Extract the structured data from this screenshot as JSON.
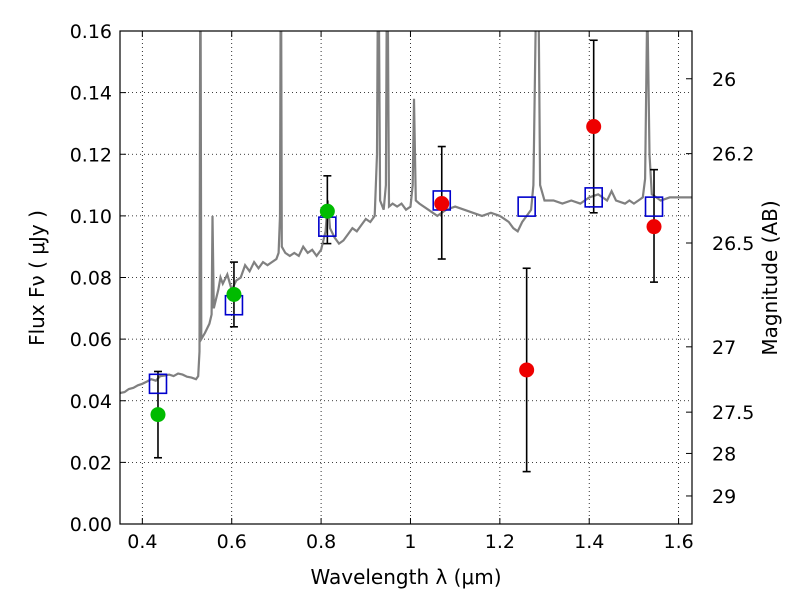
{
  "chart_data": {
    "type": "scatter",
    "xlabel": "Wavelength  λ (μm)",
    "ylabel": "Flux  Fν  ( μJy )",
    "y2label": "Magnitude (AB)",
    "xlim": [
      0.35,
      1.63
    ],
    "ylim": [
      0.0,
      0.16
    ],
    "grid": true,
    "x_ticks": [
      {
        "value": 0.4,
        "label": "0.4"
      },
      {
        "value": 0.6,
        "label": "0.6"
      },
      {
        "value": 0.8,
        "label": "0.8"
      },
      {
        "value": 1.0,
        "label": "1"
      },
      {
        "value": 1.2,
        "label": "1.2"
      },
      {
        "value": 1.4,
        "label": "1.4"
      },
      {
        "value": 1.6,
        "label": "1.6"
      }
    ],
    "y_ticks": [
      {
        "value": 0.0,
        "label": "0.00"
      },
      {
        "value": 0.02,
        "label": "0.02"
      },
      {
        "value": 0.04,
        "label": "0.04"
      },
      {
        "value": 0.06,
        "label": "0.06"
      },
      {
        "value": 0.08,
        "label": "0.08"
      },
      {
        "value": 0.1,
        "label": "0.10"
      },
      {
        "value": 0.12,
        "label": "0.12"
      },
      {
        "value": 0.14,
        "label": "0.14"
      },
      {
        "value": 0.16,
        "label": "0.16"
      }
    ],
    "mag_ticks": [
      {
        "label": "26",
        "flux": 0.1445
      },
      {
        "label": "26.2",
        "flux": 0.1202
      },
      {
        "label": "26.5",
        "flux": 0.0912
      },
      {
        "label": "27",
        "flux": 0.0575
      },
      {
        "label": "27.5",
        "flux": 0.0363
      },
      {
        "label": "28",
        "flux": 0.0229
      },
      {
        "label": "29",
        "flux": 0.0091
      }
    ],
    "model_spectrum": {
      "color": "#808080",
      "points": [
        [
          0.35,
          0.0425
        ],
        [
          0.36,
          0.0428
        ],
        [
          0.37,
          0.0438
        ],
        [
          0.38,
          0.0442
        ],
        [
          0.39,
          0.045
        ],
        [
          0.4,
          0.0455
        ],
        [
          0.41,
          0.0462
        ],
        [
          0.42,
          0.047
        ],
        [
          0.43,
          0.0465
        ],
        [
          0.44,
          0.048
        ],
        [
          0.45,
          0.0482
        ],
        [
          0.46,
          0.0485
        ],
        [
          0.47,
          0.048
        ],
        [
          0.48,
          0.0488
        ],
        [
          0.49,
          0.0485
        ],
        [
          0.5,
          0.0478
        ],
        [
          0.51,
          0.0475
        ],
        [
          0.52,
          0.047
        ],
        [
          0.525,
          0.048
        ],
        [
          0.528,
          0.056
        ],
        [
          0.53,
          0.2
        ],
        [
          0.532,
          0.06
        ],
        [
          0.54,
          0.062
        ],
        [
          0.55,
          0.065
        ],
        [
          0.555,
          0.068
        ],
        [
          0.557,
          0.1
        ],
        [
          0.56,
          0.07
        ],
        [
          0.57,
          0.076
        ],
        [
          0.575,
          0.08
        ],
        [
          0.58,
          0.078
        ],
        [
          0.59,
          0.081
        ],
        [
          0.6,
          0.076
        ],
        [
          0.61,
          0.079
        ],
        [
          0.62,
          0.08
        ],
        [
          0.63,
          0.084
        ],
        [
          0.64,
          0.082
        ],
        [
          0.65,
          0.085
        ],
        [
          0.66,
          0.083
        ],
        [
          0.67,
          0.085
        ],
        [
          0.68,
          0.084
        ],
        [
          0.69,
          0.085
        ],
        [
          0.7,
          0.086
        ],
        [
          0.705,
          0.088
        ],
        [
          0.708,
          0.1
        ],
        [
          0.71,
          0.2
        ],
        [
          0.712,
          0.09
        ],
        [
          0.72,
          0.088
        ],
        [
          0.73,
          0.087
        ],
        [
          0.74,
          0.088
        ],
        [
          0.75,
          0.087
        ],
        [
          0.76,
          0.09
        ],
        [
          0.77,
          0.088
        ],
        [
          0.78,
          0.089
        ],
        [
          0.79,
          0.087
        ],
        [
          0.8,
          0.089
        ],
        [
          0.81,
          0.095
        ],
        [
          0.815,
          0.105
        ],
        [
          0.82,
          0.096
        ],
        [
          0.83,
          0.093
        ],
        [
          0.84,
          0.091
        ],
        [
          0.85,
          0.092
        ],
        [
          0.86,
          0.094
        ],
        [
          0.87,
          0.096
        ],
        [
          0.88,
          0.095
        ],
        [
          0.89,
          0.097
        ],
        [
          0.9,
          0.099
        ],
        [
          0.91,
          0.098
        ],
        [
          0.92,
          0.1
        ],
        [
          0.925,
          0.12
        ],
        [
          0.928,
          0.2
        ],
        [
          0.932,
          0.105
        ],
        [
          0.94,
          0.102
        ],
        [
          0.945,
          0.11
        ],
        [
          0.948,
          0.2
        ],
        [
          0.952,
          0.103
        ],
        [
          0.96,
          0.104
        ],
        [
          0.97,
          0.103
        ],
        [
          0.98,
          0.104
        ],
        [
          0.99,
          0.102
        ],
        [
          1.0,
          0.103
        ],
        [
          1.005,
          0.11
        ],
        [
          1.008,
          0.138
        ],
        [
          1.012,
          0.105
        ],
        [
          1.02,
          0.104
        ],
        [
          1.04,
          0.102
        ],
        [
          1.06,
          0.1
        ],
        [
          1.08,
          0.102
        ],
        [
          1.1,
          0.103
        ],
        [
          1.12,
          0.102
        ],
        [
          1.14,
          0.101
        ],
        [
          1.16,
          0.1
        ],
        [
          1.18,
          0.101
        ],
        [
          1.2,
          0.1
        ],
        [
          1.22,
          0.098
        ],
        [
          1.23,
          0.096
        ],
        [
          1.24,
          0.095
        ],
        [
          1.25,
          0.098
        ],
        [
          1.26,
          0.1
        ],
        [
          1.27,
          0.102
        ],
        [
          1.275,
          0.11
        ],
        [
          1.28,
          0.16
        ],
        [
          1.285,
          0.2
        ],
        [
          1.29,
          0.11
        ],
        [
          1.3,
          0.105
        ],
        [
          1.32,
          0.105
        ],
        [
          1.34,
          0.104
        ],
        [
          1.36,
          0.105
        ],
        [
          1.38,
          0.104
        ],
        [
          1.4,
          0.106
        ],
        [
          1.42,
          0.107
        ],
        [
          1.44,
          0.105
        ],
        [
          1.45,
          0.108
        ],
        [
          1.46,
          0.105
        ],
        [
          1.48,
          0.104
        ],
        [
          1.49,
          0.105
        ],
        [
          1.5,
          0.104
        ],
        [
          1.51,
          0.105
        ],
        [
          1.52,
          0.106
        ],
        [
          1.525,
          0.112
        ],
        [
          1.53,
          0.17
        ],
        [
          1.535,
          0.12
        ],
        [
          1.54,
          0.107
        ],
        [
          1.55,
          0.106
        ],
        [
          1.56,
          0.105
        ],
        [
          1.58,
          0.106
        ],
        [
          1.6,
          0.106
        ],
        [
          1.63,
          0.106
        ]
      ]
    },
    "model_photometry": {
      "color": "#0000cc",
      "points": [
        {
          "x": 0.435,
          "y": 0.0455
        },
        {
          "x": 0.605,
          "y": 0.071
        },
        {
          "x": 0.814,
          "y": 0.0965
        },
        {
          "x": 1.07,
          "y": 0.105
        },
        {
          "x": 1.26,
          "y": 0.103
        },
        {
          "x": 1.41,
          "y": 0.106
        },
        {
          "x": 1.545,
          "y": 0.103
        }
      ]
    },
    "observed_optical": {
      "color": "#00bb00",
      "points": [
        {
          "x": 0.435,
          "y": 0.0355,
          "err_low": 0.0215,
          "err_high": 0.0495
        },
        {
          "x": 0.605,
          "y": 0.0745,
          "err_low": 0.064,
          "err_high": 0.085
        },
        {
          "x": 0.814,
          "y": 0.1015,
          "err_low": 0.091,
          "err_high": 0.113
        }
      ]
    },
    "observed_ir": {
      "color": "#ee0000",
      "points": [
        {
          "x": 1.07,
          "y": 0.104,
          "err_low": 0.086,
          "err_high": 0.1225
        },
        {
          "x": 1.26,
          "y": 0.05,
          "err_low": 0.017,
          "err_high": 0.083
        },
        {
          "x": 1.41,
          "y": 0.129,
          "err_low": 0.101,
          "err_high": 0.157
        },
        {
          "x": 1.545,
          "y": 0.0965,
          "err_low": 0.0785,
          "err_high": 0.115
        }
      ]
    }
  }
}
